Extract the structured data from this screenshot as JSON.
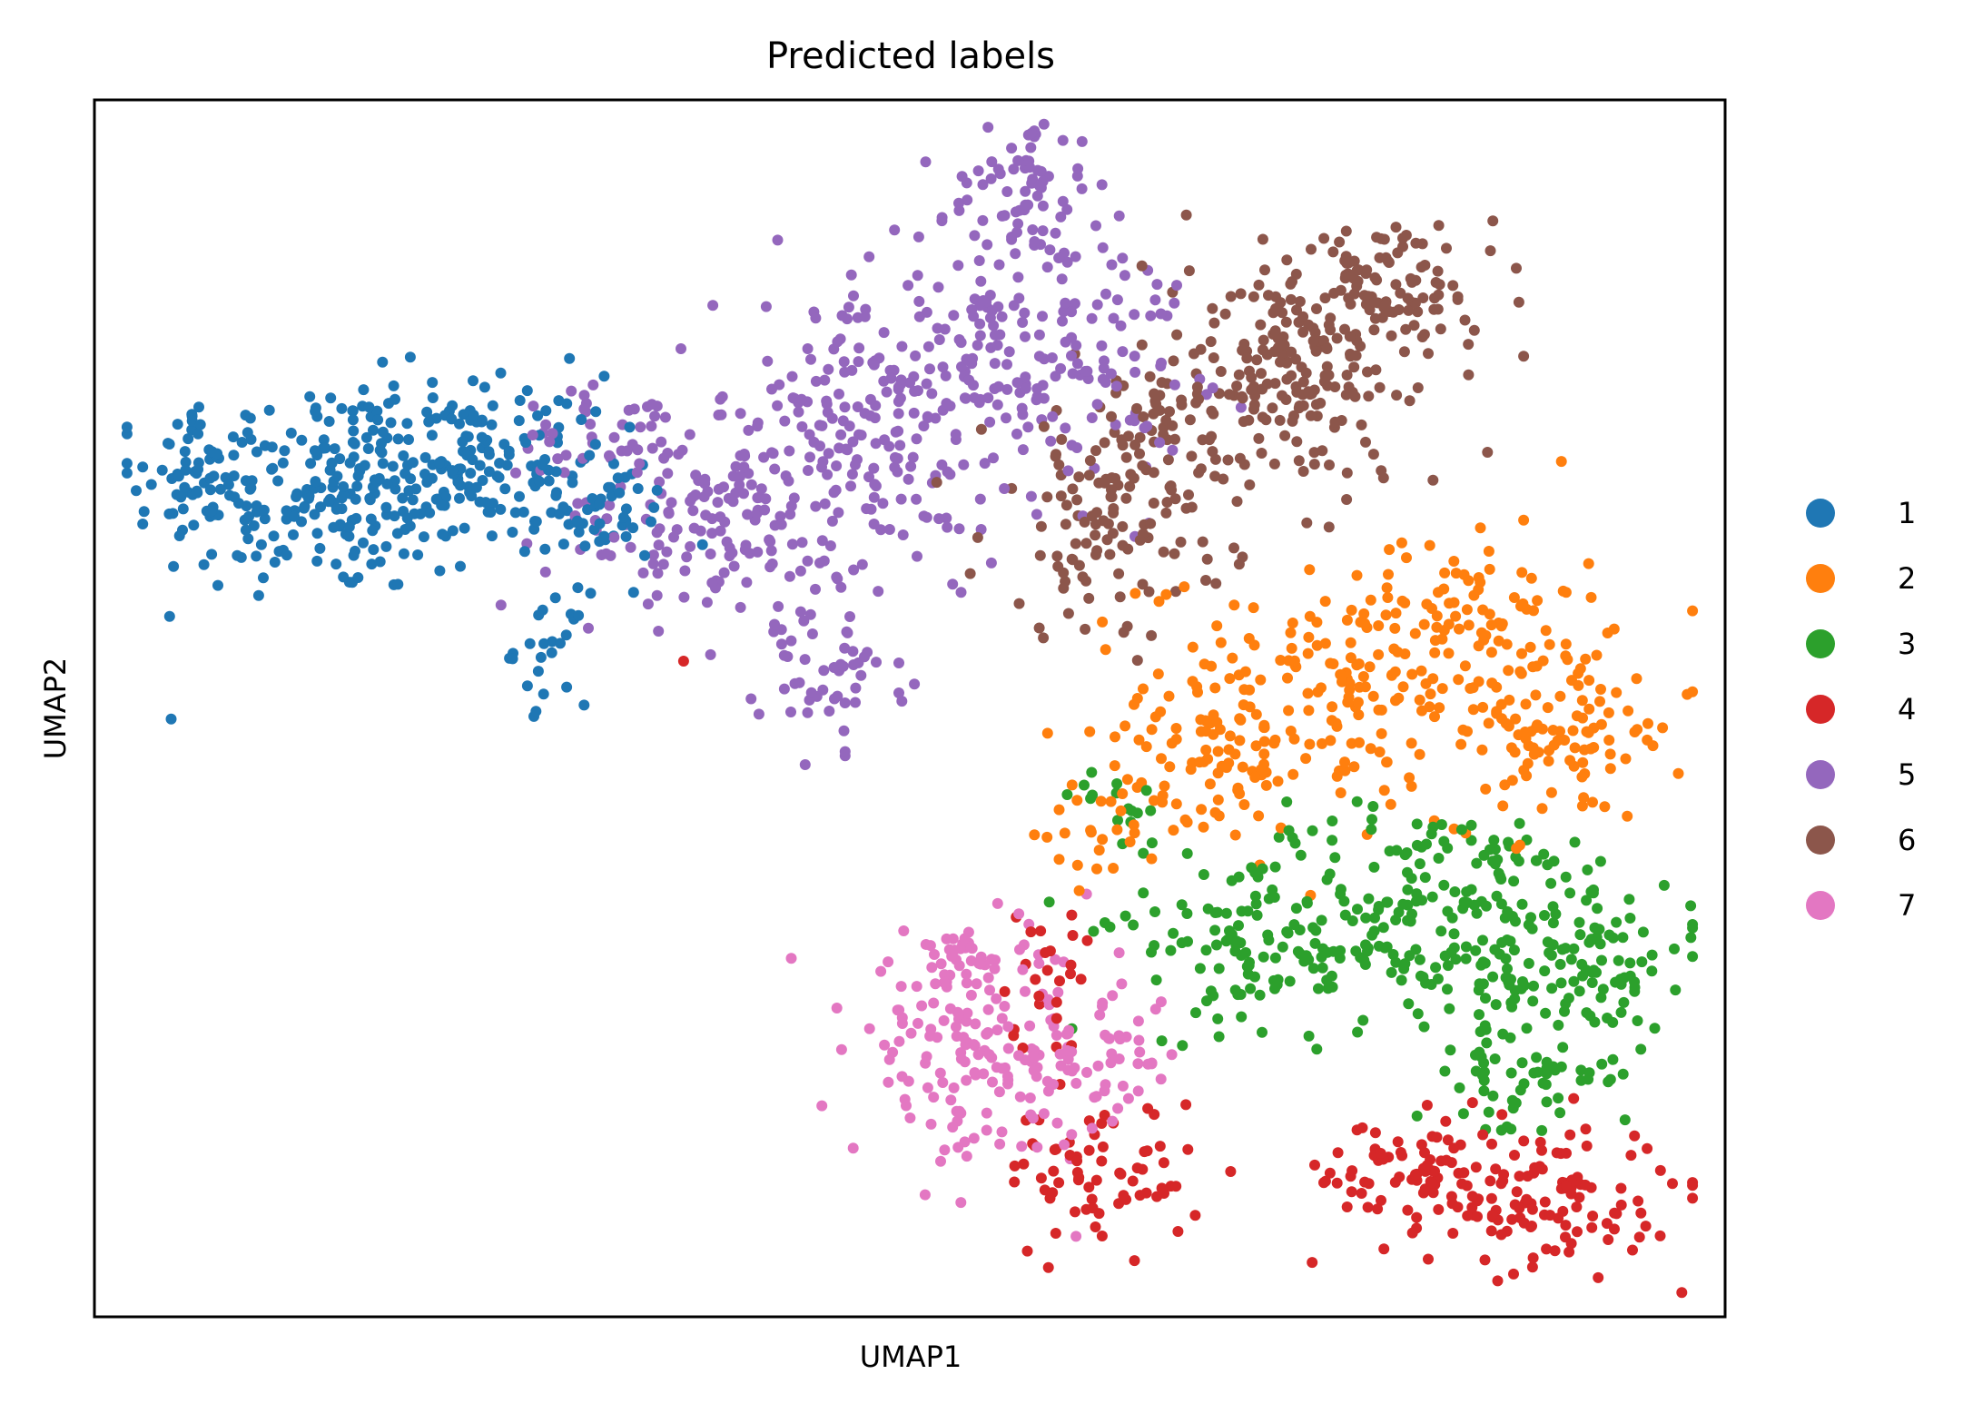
{
  "chart_data": {
    "type": "scatter",
    "title": "Predicted labels",
    "xlabel": "UMAP1",
    "ylabel": "UMAP2",
    "xlim": [
      0,
      100
    ],
    "ylim": [
      0,
      100
    ],
    "grid": false,
    "ticks": false,
    "legend_placement": "right, outside plot",
    "series": [
      {
        "name": "1",
        "color": "#1f77b4",
        "blobs": [
          [
            14,
            68,
            8,
            6,
            240
          ],
          [
            24,
            70,
            5,
            5,
            140
          ],
          [
            31,
            66,
            3,
            3,
            40
          ],
          [
            28,
            55,
            1.5,
            3,
            25
          ],
          [
            7,
            70,
            2,
            3,
            30
          ]
        ]
      },
      {
        "name": "2",
        "color": "#ff7f0e",
        "blobs": [
          [
            78,
            52,
            9,
            6,
            220
          ],
          [
            90,
            48,
            5,
            5,
            90
          ],
          [
            68,
            45,
            5,
            4,
            70
          ],
          [
            85,
            60,
            4,
            4,
            40
          ],
          [
            62,
            40,
            3,
            3,
            25
          ]
        ]
      },
      {
        "name": "3",
        "color": "#2ca02c",
        "blobs": [
          [
            82,
            33,
            10,
            6,
            260
          ],
          [
            92,
            28,
            4,
            5,
            70
          ],
          [
            72,
            30,
            5,
            4,
            70
          ],
          [
            87,
            20,
            4,
            4,
            60
          ],
          [
            63,
            42,
            2,
            2,
            15
          ]
        ]
      },
      {
        "name": "4",
        "color": "#d62728",
        "blobs": [
          [
            88,
            10,
            6,
            4,
            140
          ],
          [
            80,
            12,
            4,
            3,
            50
          ],
          [
            62,
            12,
            4,
            4,
            70
          ],
          [
            58,
            28,
            2,
            4,
            25
          ],
          [
            36,
            54,
            0.3,
            0.3,
            1
          ]
        ]
      },
      {
        "name": "5",
        "color": "#9467bd",
        "blobs": [
          [
            57,
            80,
            7,
            8,
            200
          ],
          [
            47,
            72,
            6,
            8,
            200
          ],
          [
            37,
            65,
            6,
            5,
            120
          ],
          [
            57,
            93,
            3,
            4,
            60
          ],
          [
            32,
            73,
            4,
            3,
            40
          ],
          [
            45,
            53,
            3,
            4,
            50
          ]
        ]
      },
      {
        "name": "6",
        "color": "#8c564b",
        "blobs": [
          [
            74,
            78,
            6,
            7,
            220
          ],
          [
            62,
            65,
            5,
            6,
            110
          ],
          [
            80,
            85,
            4,
            3,
            70
          ],
          [
            66,
            73,
            3,
            4,
            50
          ]
        ]
      },
      {
        "name": "7",
        "color": "#e377c2",
        "blobs": [
          [
            54,
            22,
            5,
            6,
            170
          ],
          [
            62,
            21,
            3,
            4,
            50
          ],
          [
            53,
            29,
            2,
            2,
            20
          ]
        ]
      }
    ]
  }
}
